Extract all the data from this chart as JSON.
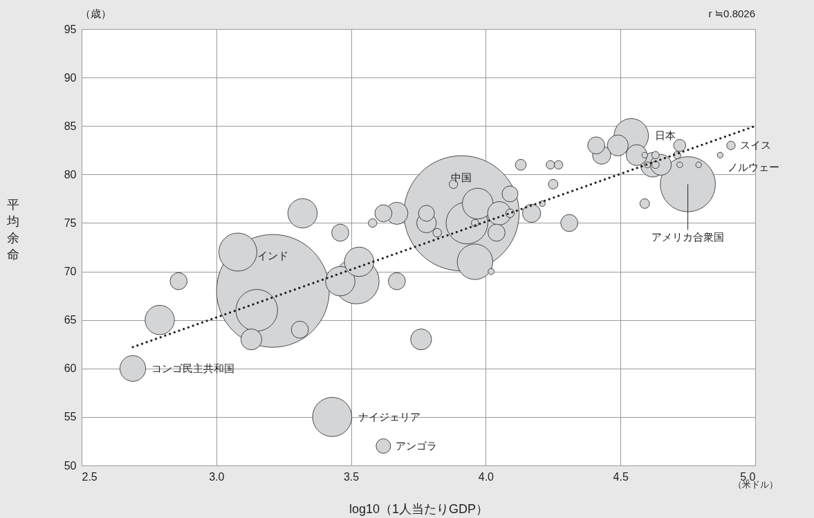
{
  "chart_data": {
    "type": "bubble",
    "xlabel": "log10（1人当たりGDP）",
    "ylabel": "平均余命",
    "xlim": [
      2.5,
      5.0
    ],
    "xticks": [
      2.5,
      {
        "value": 3,
        "label": "3.0"
      },
      3.5,
      {
        "value": 4,
        "label": "4.0"
      },
      4.5,
      {
        "value": 5,
        "label": "5.0"
      }
    ],
    "ylim": [
      50,
      95
    ],
    "yticks": [
      50,
      55,
      60,
      65,
      70,
      75,
      80,
      85,
      90,
      95
    ],
    "grid": true,
    "series": [
      {
        "type": "bubble",
        "color": "#d4d5d7",
        "x": [
          3.91,
          3.21,
          4.75,
          3.52,
          3.15,
          3.43,
          3.08,
          3.96,
          4.54,
          3.93,
          3.97,
          2.79,
          3.32,
          3.46,
          3.53,
          2.69,
          4.62,
          4.05,
          3.67,
          3.13,
          3.76,
          4.49,
          4.56,
          4.65,
          3.78,
          4.17,
          4.43,
          2.86,
          3.46,
          3.31,
          3.67,
          3.62,
          4.04,
          4.31,
          4.41,
          3.78,
          4.09,
          3.62,
          4.72,
          4.13,
          4.25,
          4.59,
          3.58,
          3.88,
          3.82,
          4.09,
          4.24,
          4.27,
          4.91,
          3.96,
          4.63,
          4.63,
          4.71,
          4.02,
          4.6,
          4.59,
          4.21,
          4.72,
          4.79,
          4.87
        ],
        "values": [
          76,
          68,
          79,
          69,
          66,
          55,
          72,
          71,
          84,
          75,
          77,
          65,
          76,
          69,
          71,
          60,
          81,
          76,
          76,
          63,
          63,
          83,
          82,
          81,
          75,
          76,
          82,
          69,
          74,
          64,
          69,
          76,
          74,
          75,
          83,
          76,
          78,
          52,
          83,
          81,
          79,
          77,
          75,
          79,
          74,
          76,
          81,
          81,
          83,
          75,
          82,
          81,
          82,
          70,
          81,
          82,
          77,
          81,
          81,
          82
        ],
        "sizes": [
          1,
          0.958,
          0.229,
          0.155,
          0.131,
          0.116,
          0.109,
          0.095,
          0.089,
          0.131,
          0.071,
          0.065,
          0.065,
          0.065,
          0.065,
          0.05,
          0.045,
          0.041,
          0.037,
          0.033,
          0.033,
          0.033,
          0.033,
          0.033,
          0.029,
          0.025,
          0.025,
          0.022,
          0.022,
          0.022,
          0.022,
          0.022,
          0.022,
          0.022,
          0.022,
          0.019,
          0.019,
          0.016,
          0.011,
          0.009,
          0.007,
          0.007,
          0.0055,
          0.0055,
          0.0055,
          0.0055,
          0.0055,
          0.0055,
          0.0055,
          0.0041,
          0.0041,
          0.0041,
          0.0041,
          0.0028,
          0.0028,
          0.0025,
          0.0025,
          0.0025,
          0.0025,
          0.0025
        ]
      },
      {
        "type": "line",
        "color": "#222222",
        "line_style": "dotted",
        "x": [
          2.69,
          5.0
        ],
        "values": [
          62.2,
          85
        ]
      }
    ],
    "annotations": [
      "（歳）",
      "r ≒0.8026",
      "（米ドル）",
      {
        "text": "コンゴ民主共和国",
        "x": 2.69,
        "y": 60
      },
      {
        "text": "インド",
        "x": 3.21,
        "y": 68
      },
      {
        "text": "中国",
        "x": 3.91,
        "y": 76
      },
      {
        "text": "ナイジェリア",
        "x": 3.43,
        "y": 55
      },
      {
        "text": "アンゴラ",
        "x": 3.62,
        "y": 52
      },
      {
        "text": "日本",
        "x": 4.54,
        "y": 84
      },
      {
        "text": "スイス",
        "x": 4.91,
        "y": 83
      },
      {
        "text": "ノルウェー",
        "x": 4.87,
        "y": 82
      },
      {
        "text": "アメリカ合衆国",
        "x": 4.75,
        "y": 79
      }
    ]
  }
}
